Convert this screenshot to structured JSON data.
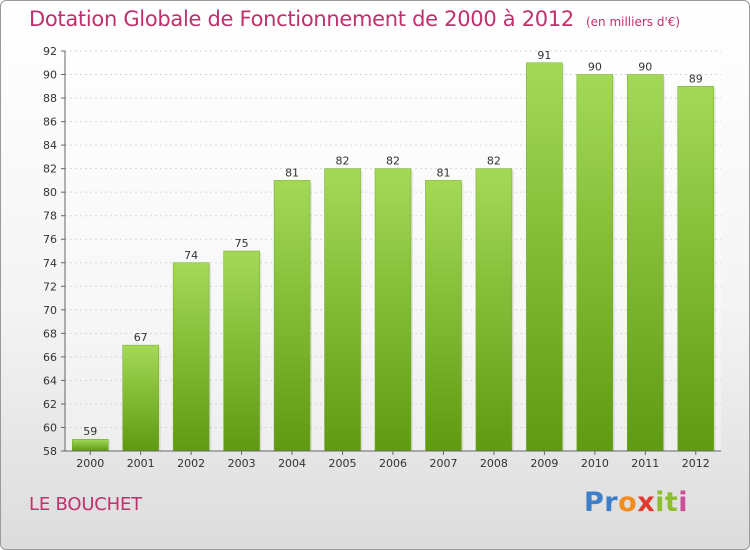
{
  "chart_data": {
    "type": "bar",
    "title": "Dotation Globale de Fonctionnement de 2000 à 2012",
    "unit_note": "(en milliers d'€)",
    "categories": [
      "2000",
      "2001",
      "2002",
      "2003",
      "2004",
      "2005",
      "2006",
      "2007",
      "2008",
      "2009",
      "2010",
      "2011",
      "2012"
    ],
    "values": [
      59,
      67,
      74,
      75,
      81,
      82,
      82,
      81,
      82,
      91,
      90,
      90,
      89
    ],
    "xlabel": "",
    "ylabel": "",
    "ylim": [
      58,
      92
    ],
    "yticks": [
      58,
      60,
      62,
      64,
      66,
      68,
      70,
      72,
      74,
      76,
      78,
      80,
      82,
      84,
      86,
      88,
      90,
      92
    ],
    "grid": true,
    "bar_color": "#8cc63f",
    "bar_color_dark": "#5f9a12",
    "title_color": "#c0306c"
  },
  "place_name": "LE BOUCHET",
  "logo": {
    "letters": [
      "P",
      "r",
      "o",
      "x",
      "i",
      "t",
      "i"
    ],
    "colors": [
      "#3d7ec8",
      "#3d7ec8",
      "#f28c1e",
      "#e03a2f",
      "#8cbf2b",
      "#8cbf2b",
      "#c94f9a"
    ]
  }
}
